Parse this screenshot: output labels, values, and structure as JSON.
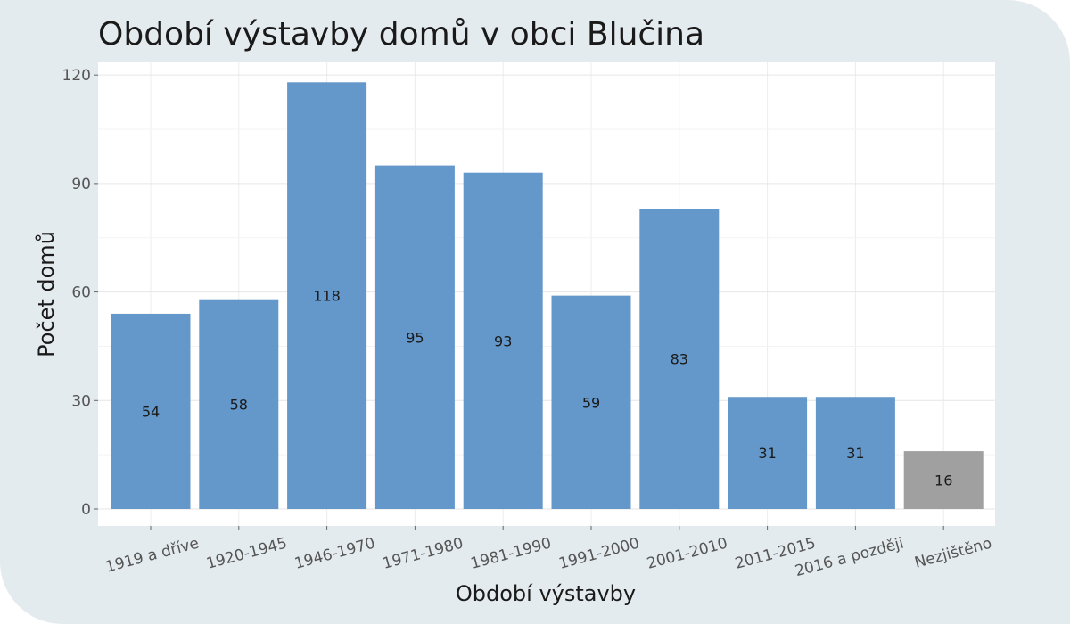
{
  "chart_data": {
    "type": "bar",
    "title": "Období výstavby domů v obci Blučina",
    "xlabel": "Období výstavby",
    "ylabel": "Počet domů",
    "categories": [
      "1919 a dříve",
      "1920-1945",
      "1946-1970",
      "1971-1980",
      "1981-1990",
      "1991-2000",
      "2001-2010",
      "2011-2015",
      "2016 a později",
      "Nezjištěno"
    ],
    "values": [
      54,
      58,
      118,
      95,
      93,
      59,
      83,
      31,
      31,
      16
    ],
    "colors": [
      "#6498cb",
      "#6498cb",
      "#6498cb",
      "#6498cb",
      "#6498cb",
      "#6498cb",
      "#6498cb",
      "#6498cb",
      "#6498cb",
      "#a0a0a0"
    ],
    "ylim": [
      0,
      123
    ],
    "yticks": [
      0,
      30,
      60,
      90,
      120
    ],
    "grid": true,
    "legend": "none"
  }
}
